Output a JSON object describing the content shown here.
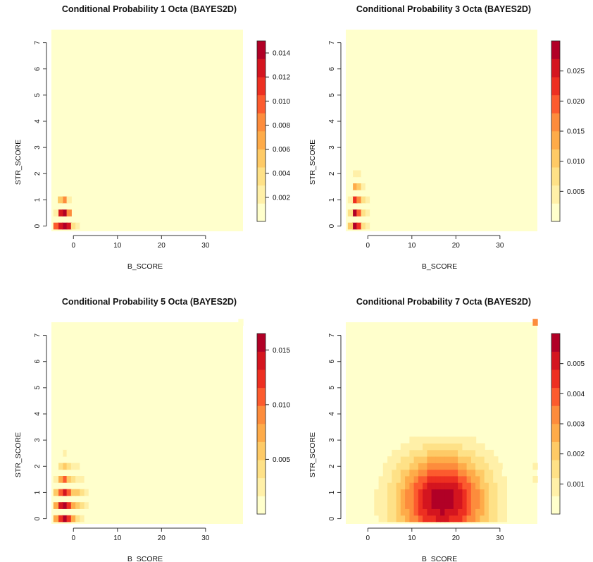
{
  "chart_data": [
    {
      "type": "heatmap",
      "title": "Conditional Probability 1 Octa (BAYES2D)",
      "xlabel": "B_SCORE",
      "ylabel": "STR_SCORE",
      "xlim": [
        -5,
        38.5
      ],
      "ylim": [
        -0.2,
        7.5
      ],
      "xticks": [
        0,
        10,
        20,
        30
      ],
      "yticks": [
        0,
        1,
        2,
        3,
        4,
        5,
        6,
        7
      ],
      "cells": [
        [
          -2,
          0,
          0.0148
        ],
        [
          -1,
          0,
          0.0132
        ],
        [
          -3,
          0,
          0.012
        ],
        [
          -4,
          0,
          0.0098
        ],
        [
          0,
          0,
          0.0035
        ],
        [
          1,
          0,
          0.0018
        ],
        [
          2,
          0,
          0.0006
        ],
        [
          -2,
          0.5,
          0.0135
        ],
        [
          -3,
          0.5,
          0.0128
        ],
        [
          -1,
          0.5,
          0.0085
        ],
        [
          -4,
          0.5,
          0.0025
        ],
        [
          -2,
          1,
          0.0082
        ],
        [
          -3,
          1,
          0.0045
        ],
        [
          -1,
          1,
          0.0024
        ],
        [
          -2,
          1.5,
          0.0012
        ],
        [
          -3,
          1.5,
          0.0005
        ]
      ],
      "colorbar": {
        "ticks": [
          0.002,
          0.004,
          0.006,
          0.008,
          0.01,
          0.012,
          0.014
        ],
        "labels": [
          "0.002",
          "0.004",
          "0.006",
          "0.008",
          "0.010",
          "0.012",
          "0.014"
        ],
        "max": 0.015
      }
    },
    {
      "type": "heatmap",
      "title": "Conditional Probability 3 Octa (BAYES2D)",
      "xlabel": "B_SCORE",
      "ylabel": "STR_SCORE",
      "xlim": [
        -5,
        38.5
      ],
      "ylim": [
        -0.2,
        7.5
      ],
      "xticks": [
        0,
        10,
        20,
        30
      ],
      "yticks": [
        0,
        1,
        2,
        3,
        4,
        5,
        6,
        7
      ],
      "cells": [
        [
          -3,
          0,
          0.0295
        ],
        [
          -2,
          0,
          0.021
        ],
        [
          -4,
          0,
          0.009
        ],
        [
          -1,
          0,
          0.006
        ],
        [
          0,
          0,
          0.003
        ],
        [
          1,
          0,
          0.001
        ],
        [
          -3,
          0.5,
          0.0285
        ],
        [
          -2,
          0.5,
          0.019
        ],
        [
          -4,
          0.5,
          0.007
        ],
        [
          -1,
          0.5,
          0.008
        ],
        [
          0,
          0.5,
          0.004
        ],
        [
          1,
          0.5,
          0.0015
        ],
        [
          2,
          0.5,
          0.0008
        ],
        [
          -3,
          1,
          0.022
        ],
        [
          -2,
          1,
          0.015
        ],
        [
          -4,
          1,
          0.004
        ],
        [
          -1,
          1,
          0.006
        ],
        [
          0,
          1,
          0.0035
        ],
        [
          1,
          1,
          0.0012
        ],
        [
          2,
          1,
          0.0006
        ],
        [
          -3,
          1.5,
          0.012
        ],
        [
          -2,
          1.5,
          0.009
        ],
        [
          -4,
          1.5,
          0.002
        ],
        [
          -1,
          1.5,
          0.004
        ],
        [
          0,
          1.5,
          0.001
        ],
        [
          -3,
          2,
          0.005
        ],
        [
          -2,
          2,
          0.004
        ],
        [
          -4,
          2,
          0.0008
        ],
        [
          -1,
          2,
          0.0015
        ],
        [
          -3,
          2.5,
          0.0012
        ],
        [
          -2,
          2.5,
          0.001
        ],
        [
          -1,
          2.5,
          0.0004
        ]
      ],
      "colorbar": {
        "ticks": [
          0.005,
          0.01,
          0.015,
          0.02,
          0.025
        ],
        "labels": [
          "0.005",
          "0.010",
          "0.015",
          "0.020",
          "0.025"
        ],
        "max": 0.03
      }
    },
    {
      "type": "heatmap",
      "title": "Conditional Probability 5 Octa (BAYES2D)",
      "xlabel": "B_SCORE",
      "ylabel": "STR_SCORE",
      "xlim": [
        -5,
        38.5
      ],
      "ylim": [
        -0.2,
        7.5
      ],
      "xticks": [
        0,
        10,
        20,
        30
      ],
      "yticks": [
        0,
        1,
        2,
        3,
        4,
        5,
        6,
        7
      ],
      "cells": [
        [
          -2,
          0,
          0.0165
        ],
        [
          -3,
          0,
          0.012
        ],
        [
          -1,
          0,
          0.012
        ],
        [
          -4,
          0,
          0.008
        ],
        [
          0,
          0,
          0.007
        ],
        [
          1,
          0,
          0.004
        ],
        [
          2,
          0,
          0.0025
        ],
        [
          3,
          0,
          0.0015
        ],
        [
          4,
          0,
          0.0008
        ],
        [
          -2,
          0.5,
          0.0165
        ],
        [
          -3,
          0.5,
          0.0145
        ],
        [
          -1,
          0.5,
          0.0125
        ],
        [
          -4,
          0.5,
          0.007
        ],
        [
          0,
          0.5,
          0.008
        ],
        [
          1,
          0.5,
          0.0055
        ],
        [
          2,
          0.5,
          0.004
        ],
        [
          3,
          0.5,
          0.0025
        ],
        [
          4,
          0.5,
          0.0015
        ],
        [
          5,
          0.5,
          0.0008
        ],
        [
          6,
          0.5,
          0.0004
        ],
        [
          -2,
          1,
          0.014
        ],
        [
          -3,
          1,
          0.011
        ],
        [
          -1,
          1,
          0.01
        ],
        [
          -4,
          1,
          0.006
        ],
        [
          0,
          1,
          0.0065
        ],
        [
          1,
          1,
          0.005
        ],
        [
          2,
          1,
          0.0035
        ],
        [
          3,
          1,
          0.0022
        ],
        [
          4,
          1,
          0.0015
        ],
        [
          5,
          1,
          0.001
        ],
        [
          6,
          1,
          0.0007
        ],
        [
          7,
          1,
          0.0005
        ],
        [
          8,
          1,
          0.0004
        ],
        [
          9,
          1,
          0.0003
        ],
        [
          -2,
          1.5,
          0.01
        ],
        [
          -3,
          1.5,
          0.007
        ],
        [
          -1,
          1.5,
          0.006
        ],
        [
          -4,
          1.5,
          0.0025
        ],
        [
          0,
          1.5,
          0.004
        ],
        [
          1,
          1.5,
          0.003
        ],
        [
          2,
          1.5,
          0.0022
        ],
        [
          3,
          1.5,
          0.0015
        ],
        [
          4,
          1.5,
          0.0012
        ],
        [
          5,
          1.5,
          0.0009
        ],
        [
          6,
          1.5,
          0.0007
        ],
        [
          7,
          1.5,
          0.0006
        ],
        [
          8,
          1.5,
          0.0005
        ],
        [
          9,
          1.5,
          0.0004
        ],
        [
          -2,
          2,
          0.005
        ],
        [
          -3,
          2,
          0.0035
        ],
        [
          -1,
          2,
          0.0035
        ],
        [
          -4,
          2,
          0.0015
        ],
        [
          0,
          2,
          0.0025
        ],
        [
          1,
          2,
          0.0018
        ],
        [
          2,
          2,
          0.0014
        ],
        [
          3,
          2,
          0.0012
        ],
        [
          4,
          2,
          0.001
        ],
        [
          5,
          2,
          0.0008
        ],
        [
          6,
          2,
          0.0006
        ],
        [
          7,
          2,
          0.0004
        ],
        [
          -2,
          2.5,
          0.0018
        ],
        [
          -3,
          2.5,
          0.0012
        ],
        [
          -1,
          2.5,
          0.0014
        ],
        [
          0,
          2.5,
          0.001
        ],
        [
          1,
          2.5,
          0.0008
        ],
        [
          2,
          2.5,
          0.0006
        ],
        [
          3,
          2.5,
          0.0005
        ],
        [
          4,
          2.5,
          0.0004
        ],
        [
          38,
          7.5,
          0.0016
        ]
      ],
      "colorbar": {
        "ticks": [
          0.005,
          0.01,
          0.015
        ],
        "labels": [
          "0.005",
          "0.010",
          "0.015"
        ],
        "max": 0.0165
      }
    },
    {
      "type": "heatmap",
      "title": "Conditional Probability 7 Octa (BAYES2D)",
      "xlabel": "B_SCORE",
      "ylabel": "STR_SCORE",
      "xlim": [
        -5,
        38.5
      ],
      "ylim": [
        -0.2,
        7.5
      ],
      "xticks": [
        0,
        10,
        20,
        30
      ],
      "yticks": [
        0,
        1,
        2,
        3,
        4,
        5,
        6,
        7
      ],
      "blob": {
        "cx": 17,
        "cy": 0.7,
        "rx": 15,
        "ry": 2.6,
        "peak": 0.0058,
        "xmin": -4,
        "xmax": 31,
        "ymax": 3.0
      },
      "extra_cells": [
        [
          38,
          7.5,
          0.0034
        ],
        [
          38,
          2,
          0.0012
        ],
        [
          38,
          1.5,
          0.001
        ]
      ],
      "colorbar": {
        "ticks": [
          0.001,
          0.002,
          0.003,
          0.004,
          0.005
        ],
        "labels": [
          "0.001",
          "0.002",
          "0.003",
          "0.004",
          "0.005"
        ],
        "max": 0.006
      }
    }
  ],
  "colors": {
    "palette": [
      "#FFFFCC",
      "#FFF0A8",
      "#FEE187",
      "#FECA66",
      "#FEAB49",
      "#FD8C3C",
      "#FC5B2E",
      "#ED2F21",
      "#D4151F",
      "#B10026"
    ],
    "background": "#FFFFCC"
  }
}
